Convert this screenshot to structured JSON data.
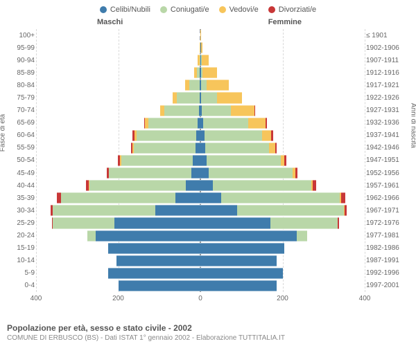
{
  "chart": {
    "type": "population-pyramid",
    "title": "Popolazione per età, sesso e stato civile - 2002",
    "subtitle": "COMUNE DI ERBUSCO (BS) - Dati ISTAT 1° gennaio 2002 - Elaborazione TUTTITALIA.IT",
    "legend": [
      {
        "label": "Celibi/Nubili",
        "color": "#3f7cac"
      },
      {
        "label": "Coniugati/e",
        "color": "#b9d7a8"
      },
      {
        "label": "Vedovi/e",
        "color": "#f7c55b"
      },
      {
        "label": "Divorziati/e",
        "color": "#c83737"
      }
    ],
    "gender_labels": {
      "left": "Maschi",
      "right": "Femmine"
    },
    "y_axis_left_label": "Fasce di età",
    "y_axis_right_label": "Anni di nascita",
    "x_axis": {
      "max": 400,
      "ticks": [
        400,
        200,
        0,
        200,
        400
      ]
    },
    "age_labels": [
      "100+",
      "95-99",
      "90-94",
      "85-89",
      "80-84",
      "75-79",
      "70-74",
      "65-69",
      "60-64",
      "55-59",
      "50-54",
      "45-49",
      "40-44",
      "35-39",
      "30-34",
      "25-29",
      "20-24",
      "15-19",
      "10-14",
      "5-9",
      "0-4"
    ],
    "birth_labels": [
      "≤ 1901",
      "1902-1906",
      "1907-1911",
      "1912-1916",
      "1917-1921",
      "1922-1926",
      "1927-1931",
      "1932-1936",
      "1937-1941",
      "1942-1946",
      "1947-1951",
      "1952-1956",
      "1957-1961",
      "1962-1966",
      "1967-1971",
      "1972-1976",
      "1977-1981",
      "1982-1986",
      "1987-1991",
      "1992-1996",
      "1997-2001"
    ],
    "colors": {
      "celibi": "#3f7cac",
      "coniugati": "#b9d7a8",
      "vedovi": "#f7c55b",
      "divorziati": "#c83737",
      "grid": "#d9d9d9",
      "center": "#999999",
      "background": "#ffffff",
      "label_font_color": "#666666",
      "title_color": "#555555",
      "subtitle_color": "#888888"
    },
    "font_sizes": {
      "legend": 11,
      "gender": 11,
      "ticks": 10,
      "title": 12,
      "subtitle": 10
    },
    "rows": [
      {
        "m": [
          0,
          0,
          0,
          0
        ],
        "f": [
          0,
          0,
          2,
          0
        ]
      },
      {
        "m": [
          0,
          0,
          2,
          0
        ],
        "f": [
          2,
          0,
          3,
          0
        ]
      },
      {
        "m": [
          0,
          2,
          5,
          0
        ],
        "f": [
          2,
          1,
          18,
          0
        ]
      },
      {
        "m": [
          1,
          7,
          8,
          0
        ],
        "f": [
          2,
          3,
          35,
          0
        ]
      },
      {
        "m": [
          2,
          25,
          10,
          0
        ],
        "f": [
          2,
          13,
          55,
          0
        ]
      },
      {
        "m": [
          2,
          55,
          10,
          0
        ],
        "f": [
          2,
          38,
          62,
          0
        ]
      },
      {
        "m": [
          3,
          85,
          10,
          0
        ],
        "f": [
          4,
          70,
          58,
          2
        ]
      },
      {
        "m": [
          7,
          120,
          8,
          2
        ],
        "f": [
          6,
          110,
          42,
          4
        ]
      },
      {
        "m": [
          10,
          145,
          5,
          5
        ],
        "f": [
          10,
          140,
          22,
          5
        ]
      },
      {
        "m": [
          12,
          150,
          3,
          4
        ],
        "f": [
          12,
          155,
          15,
          4
        ]
      },
      {
        "m": [
          18,
          175,
          2,
          6
        ],
        "f": [
          15,
          180,
          10,
          5
        ]
      },
      {
        "m": [
          22,
          200,
          1,
          5
        ],
        "f": [
          20,
          205,
          6,
          5
        ]
      },
      {
        "m": [
          35,
          235,
          1,
          8
        ],
        "f": [
          30,
          240,
          4,
          8
        ]
      },
      {
        "m": [
          60,
          280,
          0,
          10
        ],
        "f": [
          50,
          290,
          2,
          10
        ]
      },
      {
        "m": [
          110,
          250,
          0,
          5
        ],
        "f": [
          90,
          260,
          1,
          6
        ]
      },
      {
        "m": [
          210,
          150,
          0,
          2
        ],
        "f": [
          170,
          165,
          0,
          3
        ]
      },
      {
        "m": [
          255,
          20,
          0,
          0
        ],
        "f": [
          235,
          25,
          0,
          0
        ]
      },
      {
        "m": [
          225,
          0,
          0,
          0
        ],
        "f": [
          205,
          0,
          0,
          0
        ]
      },
      {
        "m": [
          205,
          0,
          0,
          0
        ],
        "f": [
          185,
          0,
          0,
          0
        ]
      },
      {
        "m": [
          225,
          0,
          0,
          0
        ],
        "f": [
          200,
          0,
          0,
          0
        ]
      },
      {
        "m": [
          200,
          0,
          0,
          0
        ],
        "f": [
          185,
          0,
          0,
          0
        ]
      }
    ]
  }
}
